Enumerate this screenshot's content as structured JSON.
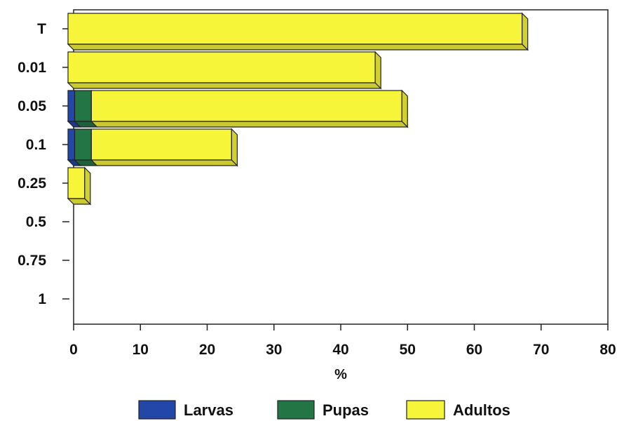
{
  "chart_data": {
    "type": "bar",
    "orientation": "horizontal",
    "stacked": true,
    "three_d": true,
    "categories": [
      "T",
      "0.01",
      "0.05",
      "0.1",
      "0.25",
      "0.5",
      "0.75",
      "1"
    ],
    "series": [
      {
        "name": "Larvas",
        "color": "#2347a8",
        "values": [
          0,
          0,
          1,
          1,
          0,
          0,
          0,
          0
        ]
      },
      {
        "name": "Pupas",
        "color": "#237545",
        "values": [
          0,
          0,
          2.5,
          2.5,
          0,
          0,
          0,
          0
        ]
      },
      {
        "name": "Adultos",
        "color": "#f7f53a",
        "values": [
          68,
          46,
          46.5,
          21,
          2.5,
          0,
          0,
          0
        ]
      }
    ],
    "xlabel": "%",
    "ylabel": "",
    "title": "",
    "xlim": [
      0,
      80
    ],
    "xticks": [
      "0",
      "10",
      "20",
      "30",
      "40",
      "50",
      "60",
      "70",
      "80"
    ],
    "grid": false,
    "legend_position": "bottom"
  }
}
